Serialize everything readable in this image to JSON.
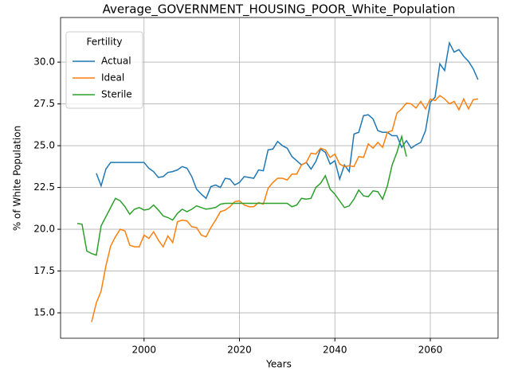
{
  "chart_data": {
    "type": "line",
    "title": "Average_GOVERNMENT_HOUSING_POOR_White_Population",
    "x_label": "Years",
    "y_label": "% of White Population",
    "legend_title": "Fertility",
    "legend_loc": "upper left",
    "grid": true,
    "x": [
      1986,
      1987,
      1988,
      1989,
      1990,
      1991,
      1992,
      1993,
      1994,
      1995,
      1996,
      1997,
      1998,
      1999,
      2000,
      2001,
      2002,
      2003,
      2004,
      2005,
      2006,
      2007,
      2008,
      2009,
      2010,
      2011,
      2012,
      2013,
      2014,
      2015,
      2016,
      2017,
      2018,
      2019,
      2020,
      2021,
      2022,
      2023,
      2024,
      2025,
      2026,
      2027,
      2028,
      2029,
      2030,
      2031,
      2032,
      2033,
      2034,
      2035,
      2036,
      2037,
      2038,
      2039,
      2040,
      2041,
      2042,
      2043,
      2044,
      2045,
      2046,
      2047,
      2048,
      2049,
      2050,
      2051,
      2052,
      2053,
      2054,
      2055,
      2056,
      2057,
      2058,
      2059,
      2060,
      2061,
      2062,
      2063,
      2064,
      2065,
      2066,
      2067,
      2068,
      2069,
      2070
    ],
    "series": [
      {
        "name": "Actual",
        "color": "#1f77b4",
        "values": [
          null,
          null,
          null,
          null,
          23.35,
          22.6,
          23.6,
          24.0,
          24.0,
          24.0,
          24.0,
          24.0,
          24.0,
          24.0,
          24.0,
          23.65,
          23.45,
          23.1,
          23.15,
          23.4,
          23.45,
          23.55,
          23.75,
          23.65,
          23.15,
          22.4,
          22.1,
          21.85,
          22.55,
          22.65,
          22.5,
          23.05,
          23.0,
          22.65,
          22.8,
          23.15,
          23.1,
          23.05,
          23.55,
          23.5,
          24.75,
          24.8,
          25.25,
          25.0,
          24.85,
          24.35,
          24.1,
          23.85,
          24.0,
          23.6,
          24.05,
          24.8,
          24.6,
          23.9,
          24.1,
          23.0,
          23.85,
          23.45,
          25.7,
          25.8,
          26.8,
          26.85,
          26.6,
          25.9,
          25.8,
          25.8,
          25.6,
          25.6,
          24.9,
          25.3,
          24.85,
          25.05,
          25.2,
          25.9,
          27.6,
          27.9,
          29.9,
          29.5,
          31.15,
          30.6,
          30.75,
          30.35,
          30.05,
          29.6,
          28.95
        ]
      },
      {
        "name": "Ideal",
        "color": "#ff7f0e",
        "values": [
          null,
          null,
          null,
          14.45,
          15.6,
          16.3,
          17.8,
          19.0,
          19.55,
          20.0,
          19.9,
          19.05,
          18.95,
          18.95,
          19.65,
          19.45,
          19.85,
          19.35,
          18.95,
          19.6,
          19.2,
          20.45,
          20.55,
          20.5,
          20.15,
          20.1,
          19.65,
          19.55,
          20.1,
          20.55,
          21.05,
          21.15,
          21.35,
          21.65,
          21.7,
          21.45,
          21.35,
          21.35,
          21.6,
          21.5,
          22.45,
          22.8,
          23.05,
          23.05,
          22.95,
          23.3,
          23.3,
          23.85,
          24.0,
          24.55,
          24.5,
          24.85,
          24.75,
          24.3,
          24.5,
          23.9,
          23.75,
          23.8,
          23.75,
          24.35,
          24.3,
          25.1,
          24.85,
          25.2,
          24.9,
          25.8,
          25.9,
          26.95,
          27.2,
          27.55,
          27.5,
          27.25,
          27.65,
          27.2,
          27.8,
          27.7,
          28.0,
          27.8,
          27.5,
          27.65,
          27.15,
          27.8,
          27.2,
          27.75,
          27.8
        ]
      },
      {
        "name": "Sterile",
        "color": "#2ca02c",
        "values": [
          20.35,
          20.3,
          18.7,
          18.55,
          18.45,
          20.2,
          20.75,
          21.3,
          21.85,
          21.7,
          21.35,
          20.9,
          21.2,
          21.3,
          21.15,
          21.2,
          21.45,
          21.15,
          20.8,
          20.7,
          20.55,
          20.95,
          21.2,
          21.05,
          21.2,
          21.4,
          21.3,
          21.2,
          21.25,
          21.3,
          21.5,
          21.55,
          21.55,
          21.55,
          21.55,
          21.55,
          21.55,
          21.55,
          21.55,
          21.55,
          21.55,
          21.55,
          21.55,
          21.55,
          21.55,
          21.35,
          21.45,
          21.85,
          21.8,
          21.85,
          22.5,
          22.75,
          23.2,
          22.4,
          22.1,
          21.7,
          21.3,
          21.4,
          21.8,
          22.35,
          22.0,
          21.95,
          22.3,
          22.25,
          21.8,
          22.6,
          23.85,
          24.6,
          25.55,
          24.35,
          null,
          null,
          null,
          null,
          null,
          null,
          null,
          null,
          null,
          null,
          null,
          null,
          null,
          null,
          null
        ]
      }
    ],
    "xlim": [
      1982.5,
      2074.2
    ],
    "xticks": [
      2000,
      2020,
      2040,
      2060
    ],
    "ylim": [
      13.48,
      32.67
    ],
    "yticks": [
      {
        "value": 15,
        "label": "15.0"
      },
      {
        "value": 17.5,
        "label": "17.5"
      },
      {
        "value": 20,
        "label": "20.0"
      },
      {
        "value": 22.5,
        "label": "22.5"
      },
      {
        "value": 25,
        "label": "25.0"
      },
      {
        "value": 27.5,
        "label": "27.5"
      },
      {
        "value": 30,
        "label": "30.0"
      }
    ]
  }
}
